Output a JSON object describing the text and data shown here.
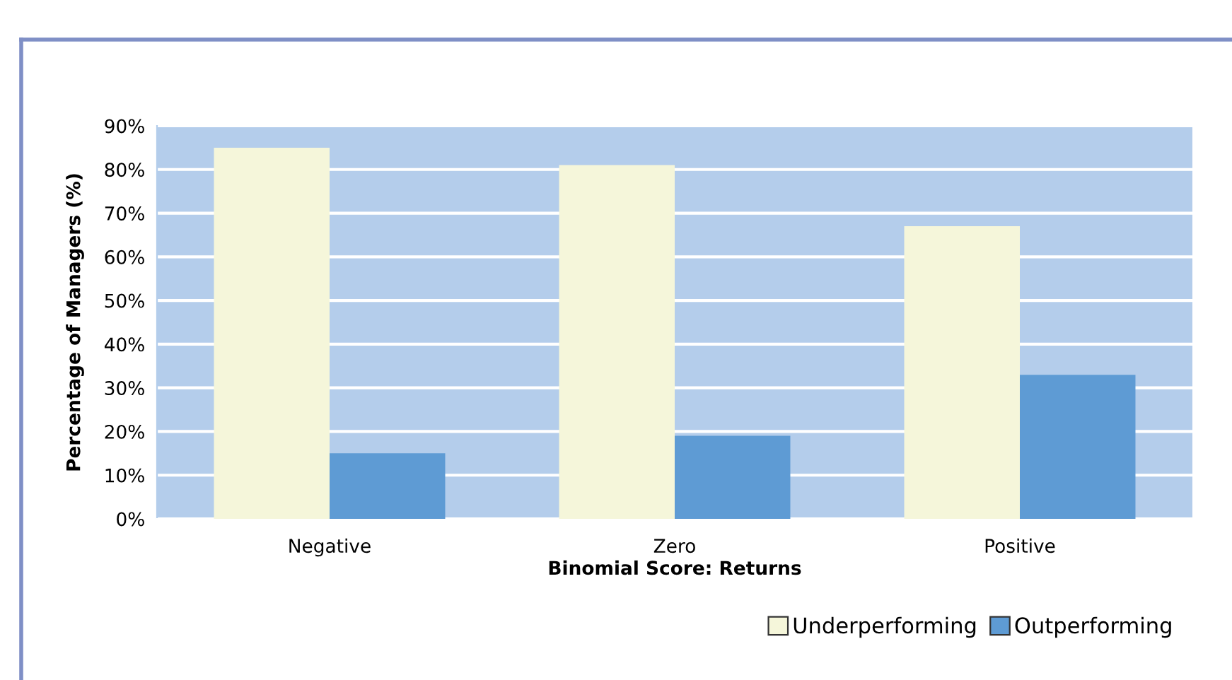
{
  "chart_data": {
    "type": "bar",
    "xlabel": "Binomial Score: Returns",
    "ylabel": "Percentage of Managers (%)",
    "categories": [
      "Negative",
      "Zero",
      "Positive"
    ],
    "series": [
      {
        "name": "Underperforming",
        "color": "#f5f6da",
        "values": [
          85,
          81,
          67
        ]
      },
      {
        "name": "Outperforming",
        "color": "#5e9bd4",
        "values": [
          15,
          19,
          33
        ]
      }
    ],
    "ylim": [
      0,
      90
    ],
    "yticks": [
      {
        "value": 0,
        "label": "0%"
      },
      {
        "value": 10,
        "label": "10%"
      },
      {
        "value": 20,
        "label": "20%"
      },
      {
        "value": 30,
        "label": "30%"
      },
      {
        "value": 40,
        "label": "40%"
      },
      {
        "value": 50,
        "label": "50%"
      },
      {
        "value": 60,
        "label": "60%"
      },
      {
        "value": 70,
        "label": "70%"
      },
      {
        "value": 80,
        "label": "80%"
      },
      {
        "value": 90,
        "label": "90%"
      }
    ],
    "grid": "y",
    "legend": "bottom right"
  }
}
